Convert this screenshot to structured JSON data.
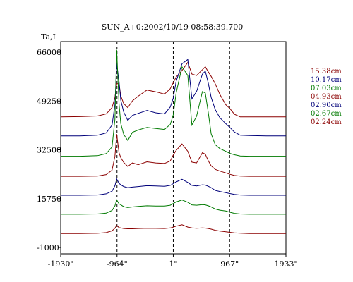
{
  "chart_data": {
    "type": "line",
    "title": "SUN_A+0:2002/10/19 08:58:39.700",
    "ylabel": "Ta,I",
    "xlabel": "",
    "ylim": [
      -1000,
      66000
    ],
    "xlim": [
      -1930,
      1933
    ],
    "grid": false,
    "y_ticks": [
      "66000",
      "49250",
      "32500",
      "15750",
      "-1000"
    ],
    "y_tick_values": [
      66000,
      49250,
      32500,
      15750,
      -1000
    ],
    "x_ticks": [
      "-1930\"",
      "-964\"",
      "1\"",
      "967\"",
      "1933\""
    ],
    "x_tick_values": [
      -1930,
      -964,
      1,
      967,
      1933
    ],
    "reference_lines_x": [
      -964,
      1,
      967
    ],
    "legend_placement": "right",
    "x": [
      -1930,
      -1600,
      -1300,
      -1150,
      -1050,
      -1000,
      -970,
      -930,
      -900,
      -850,
      -780,
      -700,
      -600,
      -450,
      -300,
      -150,
      -50,
      0,
      50,
      150,
      250,
      320,
      400,
      500,
      550,
      600,
      650,
      720,
      800,
      900,
      970,
      1050,
      1150,
      1300,
      1600,
      1933
    ],
    "series": [
      {
        "name": "15.38cm",
        "color": "#8b0000",
        "values": [
          43800,
          43900,
          44100,
          44800,
          47000,
          50500,
          55200,
          55200,
          51000,
          48400,
          47000,
          49300,
          50900,
          53000,
          52400,
          51600,
          53500,
          55500,
          57500,
          59700,
          62500,
          58500,
          58000,
          60000,
          61000,
          59300,
          57700,
          55200,
          51500,
          48000,
          46700,
          44700,
          43800,
          43800,
          43800,
          43800
        ]
      },
      {
        "name": "10.17cm",
        "color": "#00007a",
        "values": [
          37300,
          37300,
          37500,
          38300,
          41000,
          48000,
          62000,
          56000,
          49500,
          45500,
          42600,
          44300,
          45000,
          46000,
          45200,
          44800,
          47200,
          50200,
          56000,
          62000,
          63500,
          50000,
          52500,
          58500,
          59500,
          55500,
          50500,
          46300,
          43500,
          41500,
          40200,
          38600,
          37500,
          37400,
          37300,
          37300
        ]
      },
      {
        "name": "07.03cm",
        "color": "#007a00",
        "values": [
          30300,
          30300,
          30500,
          31200,
          33500,
          43000,
          66800,
          48300,
          41500,
          37800,
          35700,
          38500,
          39300,
          40200,
          39800,
          39500,
          41200,
          44500,
          52000,
          61000,
          58000,
          41000,
          44000,
          52500,
          52000,
          45500,
          38000,
          34300,
          32900,
          32000,
          31300,
          30800,
          30400,
          30300,
          30300,
          30300
        ]
      },
      {
        "name": "04.93cm",
        "color": "#8b0000",
        "values": [
          23400,
          23400,
          23500,
          24000,
          25500,
          30300,
          37900,
          31500,
          29800,
          28200,
          26800,
          28000,
          27400,
          28400,
          28000,
          27800,
          28700,
          30700,
          32300,
          34500,
          32000,
          28300,
          28000,
          31500,
          31000,
          28800,
          27000,
          25800,
          25200,
          24600,
          24100,
          23700,
          23500,
          23400,
          23400,
          23400
        ]
      },
      {
        "name": "02.90cm",
        "color": "#00007a",
        "values": [
          16900,
          16900,
          17000,
          17400,
          18300,
          20200,
          22500,
          21000,
          20500,
          19900,
          19500,
          19700,
          19900,
          20200,
          20100,
          20000,
          20300,
          20900,
          21500,
          22400,
          21300,
          20300,
          20100,
          20500,
          20400,
          20000,
          19500,
          18600,
          18200,
          17800,
          17500,
          17200,
          17000,
          16900,
          16900,
          16900
        ]
      },
      {
        "name": "02.67cm",
        "color": "#007a00",
        "values": [
          10400,
          10400,
          10500,
          10800,
          11700,
          13300,
          15300,
          14000,
          13600,
          13000,
          12700,
          12900,
          13100,
          13300,
          13200,
          13200,
          13500,
          14100,
          14600,
          15300,
          14500,
          13600,
          13500,
          13700,
          13600,
          13300,
          12900,
          12200,
          11800,
          11500,
          11100,
          10700,
          10500,
          10400,
          10400,
          10400
        ]
      },
      {
        "name": "02.24cm",
        "color": "#8b0000",
        "values": [
          3800,
          3800,
          3850,
          4100,
          4700,
          5600,
          6600,
          5800,
          5700,
          5500,
          5400,
          5400,
          5500,
          5600,
          5550,
          5500,
          5700,
          6000,
          6300,
          6800,
          6000,
          5700,
          5600,
          5700,
          5650,
          5500,
          5300,
          4900,
          4600,
          4400,
          4200,
          4000,
          3900,
          3800,
          3800,
          3800
        ]
      }
    ]
  }
}
